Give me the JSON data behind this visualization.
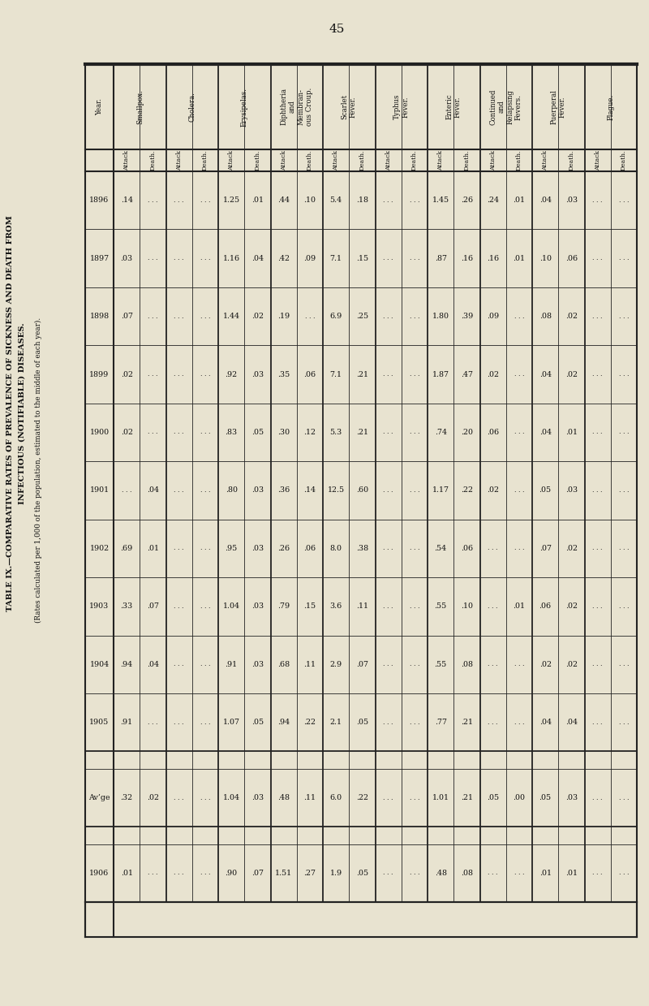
{
  "page_number": "45",
  "title_line1": "TABLE IX.—COMPARATIVE RATES OF PREVALENCE OF SICKNESS AND DEATH FROM",
  "title_line2": "INFECTIOUS (NOTIFIABLE) DISEASES.",
  "subtitle": "(Rates calculated per 1,000 of the population, estimated to the middle of each year).",
  "bg_color": "#e8e3d0",
  "text_color": "#111111",
  "line_color": "#222222",
  "years": [
    "1896",
    "1897",
    "1898",
    "1899",
    "1900",
    "1901",
    "1902",
    "1903",
    "1904",
    "1905",
    "Av’ge",
    "1906"
  ],
  "groups": [
    "Smallpox.",
    "Cholera.",
    "Erysipelas.",
    "Diphtheria\nand\nMembran-\nous Croup.",
    "Scarlet\nFever.",
    "Typhus\nFever.",
    "Enteric\nFever.",
    "Continued\nand\nRelapsing\nFevers.",
    "Puerperal\nFever.",
    "Plague."
  ],
  "sub_labels": [
    "Attack",
    "Death."
  ],
  "data": [
    [
      ".14",
      "",
      "",
      "",
      "1.25",
      ".01",
      ".44",
      ".10",
      "5.4",
      ".18",
      "",
      "",
      "1.45",
      ".26",
      ".24",
      ".01",
      ".04",
      ".03",
      "",
      ""
    ],
    [
      ".03",
      "",
      "",
      "",
      "1.16",
      ".04",
      ".42",
      ".09",
      "7.1",
      ".15",
      "",
      "",
      ".87",
      ".16",
      ".16",
      ".01",
      ".10",
      ".06",
      "",
      ""
    ],
    [
      ".07",
      "",
      "",
      "",
      "1.44",
      ".02",
      ".19",
      "",
      "6.9",
      ".25",
      "",
      "",
      "1.80",
      ".39",
      ".09",
      "",
      ".08",
      ".02",
      "",
      ""
    ],
    [
      ".02",
      "",
      "",
      "",
      ".92",
      ".03",
      ".35",
      ".06",
      "7.1",
      ".21",
      "",
      "",
      "1.87",
      ".47",
      ".02",
      "",
      ".04",
      ".02",
      "",
      ""
    ],
    [
      ".02",
      "",
      "",
      "",
      ".83",
      ".05",
      ".30",
      ".12",
      "5.3",
      ".21",
      "",
      "",
      ".74",
      ".20",
      ".06",
      "",
      ".04",
      ".01",
      "",
      ""
    ],
    [
      "",
      ".04",
      "",
      "",
      ".80",
      ".03",
      ".36",
      ".14",
      "12.5",
      ".60",
      "",
      "",
      "1.17",
      ".22",
      ".02",
      "",
      ".05",
      ".03",
      "",
      ""
    ],
    [
      ".69",
      ".01",
      "",
      "",
      ".95",
      ".03",
      ".26",
      ".06",
      "8.0",
      ".38",
      "",
      "",
      ".54",
      ".06",
      "",
      "",
      ".07",
      ".02",
      "",
      ""
    ],
    [
      ".33",
      ".07",
      "",
      "",
      "1.04",
      ".03",
      ".79",
      ".15",
      "3.6",
      ".11",
      "",
      "",
      ".55",
      ".10",
      "",
      ".01",
      ".06",
      ".02",
      "",
      ""
    ],
    [
      ".94",
      ".04",
      "",
      "",
      ".91",
      ".03",
      ".68",
      ".11",
      "2.9",
      ".07",
      "",
      "",
      ".55",
      ".08",
      "",
      "",
      ".02",
      ".02",
      "",
      ""
    ],
    [
      ".91",
      "",
      "",
      "",
      "1.07",
      ".05",
      ".94",
      ".22",
      "2.1",
      ".05",
      "",
      "",
      ".77",
      ".21",
      "",
      "",
      ".04",
      ".04",
      "",
      ""
    ],
    [
      ".32",
      ".02",
      "",
      "",
      "1.04",
      ".03",
      ".48",
      ".11",
      "6.0",
      ".22",
      "",
      "",
      "1.01",
      ".21",
      ".05",
      ".00",
      ".05",
      ".03",
      "",
      ""
    ],
    [
      ".01",
      "",
      "",
      "",
      ".90",
      ".07",
      "1.51",
      ".27",
      "1.9",
      ".05",
      "",
      "",
      ".48",
      ".08",
      "",
      "",
      ".01",
      ".01",
      "",
      ""
    ]
  ]
}
